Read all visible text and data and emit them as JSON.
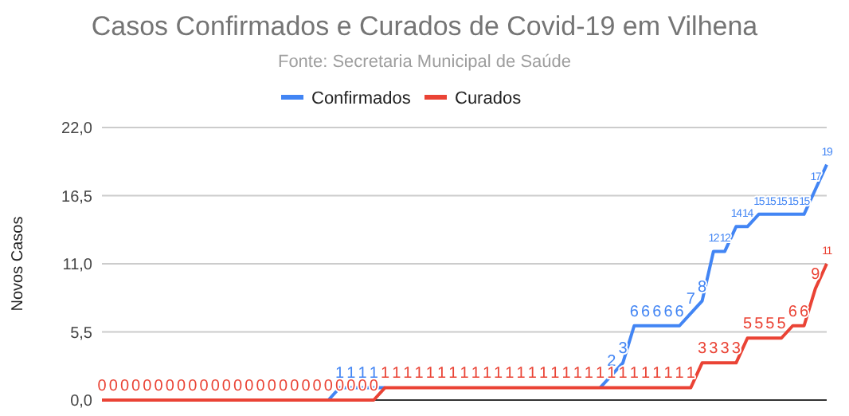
{
  "chart_data": {
    "type": "line",
    "title": "Casos Confirmados e Curados de Covid-19 em Vilhena",
    "subtitle": "Fonte: Secretaria Municipal de Saúde",
    "ylabel": "Novos Casos",
    "categories": [
      null,
      null,
      null,
      null,
      null,
      null,
      null,
      null,
      null,
      null,
      null,
      null,
      null,
      null,
      null,
      null,
      null,
      null,
      null,
      null,
      null,
      null,
      null,
      null,
      null,
      null,
      null,
      null,
      null,
      null,
      null,
      null,
      null,
      null,
      null,
      null,
      null,
      null,
      null,
      null,
      null,
      null,
      null,
      null,
      null,
      null,
      null,
      null,
      null,
      null,
      null,
      null,
      null,
      null,
      null,
      null,
      null,
      null,
      null,
      null,
      null,
      null,
      null,
      null,
      null
    ],
    "series": [
      {
        "name": "Confirmados",
        "color": "#4285f4",
        "values": [
          null,
          null,
          null,
          null,
          null,
          null,
          null,
          null,
          null,
          null,
          null,
          null,
          null,
          null,
          null,
          null,
          null,
          null,
          null,
          null,
          0,
          1,
          1,
          1,
          1,
          1,
          null,
          null,
          null,
          null,
          null,
          null,
          null,
          null,
          null,
          null,
          null,
          null,
          null,
          null,
          null,
          null,
          null,
          null,
          1,
          2,
          3,
          6,
          6,
          6,
          6,
          6,
          7,
          8,
          12,
          12,
          14,
          14,
          15,
          15,
          15,
          15,
          15,
          17,
          19
        ],
        "value_labels": [
          null,
          null,
          null,
          null,
          null,
          null,
          null,
          null,
          null,
          null,
          null,
          null,
          null,
          null,
          null,
          null,
          null,
          null,
          null,
          null,
          null,
          "1",
          "1",
          "1",
          "1",
          null,
          null,
          null,
          null,
          null,
          null,
          null,
          null,
          null,
          null,
          null,
          null,
          null,
          null,
          null,
          null,
          null,
          null,
          null,
          null,
          "2",
          "3",
          "6",
          "6",
          "6",
          "6",
          "6",
          "7",
          "8",
          "12",
          "12",
          "14",
          "14",
          "15",
          "15",
          "15",
          "15",
          "15",
          "17",
          "19"
        ]
      },
      {
        "name": "Curados",
        "color": "#ea4335",
        "values": [
          0,
          0,
          0,
          0,
          0,
          0,
          0,
          0,
          0,
          0,
          0,
          0,
          0,
          0,
          0,
          0,
          0,
          0,
          0,
          0,
          0,
          0,
          0,
          0,
          0,
          1,
          1,
          1,
          1,
          1,
          1,
          1,
          1,
          1,
          1,
          1,
          1,
          1,
          1,
          1,
          1,
          1,
          1,
          1,
          1,
          1,
          1,
          1,
          1,
          1,
          1,
          1,
          1,
          3,
          3,
          3,
          3,
          5,
          5,
          5,
          5,
          6,
          6,
          9,
          11
        ],
        "value_labels": [
          "0",
          "0",
          "0",
          "0",
          "0",
          "0",
          "0",
          "0",
          "0",
          "0",
          "0",
          "0",
          "0",
          "0",
          "0",
          "0",
          "0",
          "0",
          "0",
          "0",
          "0",
          "0",
          "0",
          "0",
          "0",
          "1",
          "1",
          "1",
          "1",
          "1",
          "1",
          "1",
          "1",
          "1",
          "1",
          "1",
          "1",
          "1",
          "1",
          "1",
          "1",
          "1",
          "1",
          "1",
          "1",
          "1",
          "1",
          "1",
          "1",
          "1",
          "1",
          "1",
          "1",
          "3",
          "3",
          "3",
          "3",
          "5",
          "5",
          "5",
          "5",
          "6",
          "6",
          "9",
          "11"
        ]
      }
    ],
    "ylim": [
      0,
      22
    ],
    "yticks": [
      {
        "value": 0,
        "label": "0,0"
      },
      {
        "value": 5.5,
        "label": "5,5"
      },
      {
        "value": 11,
        "label": "11,0"
      },
      {
        "value": 16.5,
        "label": "16,5"
      },
      {
        "value": 22,
        "label": "22,0"
      }
    ],
    "grid": true,
    "legend": "top",
    "marker": "none",
    "line_style": "solid"
  }
}
